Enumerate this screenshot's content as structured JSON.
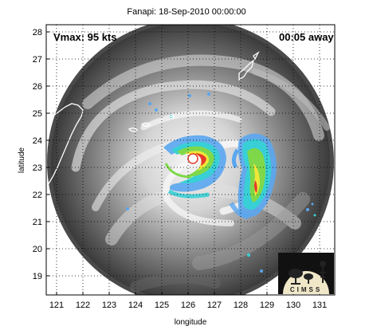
{
  "title": "Fanapi: 18-Sep-2010 00:00:00",
  "overlay": {
    "vmax": "Vmax: 95 kts",
    "away": "00:05 away"
  },
  "axes": {
    "xlabel": "longitude",
    "ylabel": "latitude",
    "xticks": [
      121,
      122,
      123,
      124,
      125,
      126,
      127,
      128,
      129,
      130,
      131
    ],
    "yticks": [
      19,
      20,
      21,
      22,
      23,
      24,
      25,
      26,
      27,
      28
    ],
    "xlim": [
      120.6,
      131.6
    ],
    "ylim": [
      18.4,
      28.3
    ],
    "grid": "dotted"
  },
  "colors": {
    "frame": "#000000",
    "coast": "#ffffff",
    "rain_light": "#5aa6f0",
    "rain_mid": "#38d0d6",
    "rain_green": "#7ed84a",
    "rain_yellow": "#f0e638",
    "rain_red": "#e43a2a"
  },
  "logo": {
    "text": "CIMSS",
    "icon": "cimss-logo"
  }
}
